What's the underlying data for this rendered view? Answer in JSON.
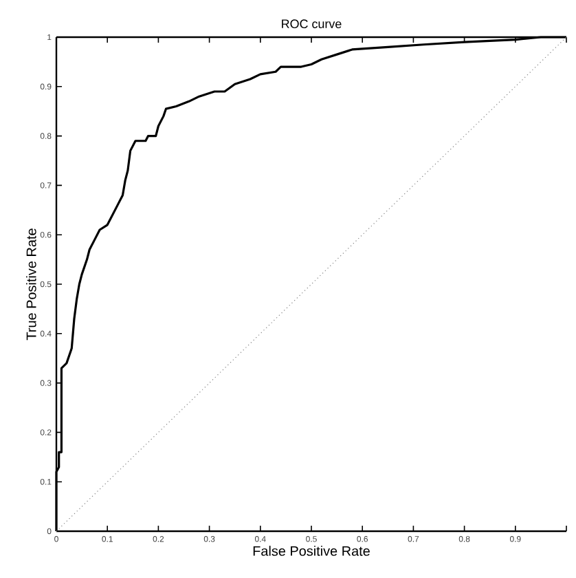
{
  "chart_data": {
    "type": "line",
    "title": "ROC curve",
    "xlabel": "False Positive Rate",
    "ylabel": "True Positive Rate",
    "xlim": [
      0,
      1
    ],
    "ylim": [
      0,
      1
    ],
    "xticks": [
      0,
      0.1,
      0.2,
      0.3,
      0.4,
      0.5,
      0.6,
      0.7,
      0.8,
      0.9,
      {
        "value": 1,
        "label": null
      }
    ],
    "yticks": [
      0,
      0.1,
      0.2,
      0.3,
      0.4,
      0.5,
      0.6,
      0.7,
      0.8,
      0.9,
      1
    ],
    "marker": "none",
    "series": [
      {
        "color": "#000000",
        "line_style": "solid",
        "x": [
          0,
          0,
          0.005,
          0.005,
          0.01,
          0.01,
          0.02,
          0.03,
          0.035,
          0.04,
          0.045,
          0.05,
          0.06,
          0.065,
          0.075,
          0.085,
          0.1,
          0.11,
          0.12,
          0.13,
          0.135,
          0.14,
          0.145,
          0.155,
          0.175,
          0.18,
          0.195,
          0.2,
          0.21,
          0.215,
          0.235,
          0.26,
          0.28,
          0.31,
          0.33,
          0.35,
          0.38,
          0.4,
          0.43,
          0.44,
          0.48,
          0.5,
          0.52,
          0.55,
          0.58,
          0.65,
          0.72,
          0.8,
          0.9,
          0.95,
          1
        ],
        "values": [
          0,
          0.12,
          0.13,
          0.16,
          0.16,
          0.33,
          0.34,
          0.37,
          0.43,
          0.47,
          0.5,
          0.52,
          0.55,
          0.57,
          0.59,
          0.61,
          0.62,
          0.64,
          0.66,
          0.68,
          0.71,
          0.73,
          0.77,
          0.79,
          0.79,
          0.8,
          0.8,
          0.82,
          0.84,
          0.855,
          0.86,
          0.87,
          0.88,
          0.89,
          0.89,
          0.905,
          0.915,
          0.925,
          0.93,
          0.94,
          0.94,
          0.945,
          0.955,
          0.965,
          0.975,
          0.98,
          0.985,
          0.99,
          0.995,
          1,
          1
        ]
      },
      {
        "color": "#808080",
        "line_style": "dotted",
        "x": [
          0,
          1
        ],
        "values": [
          0,
          1
        ]
      }
    ]
  }
}
